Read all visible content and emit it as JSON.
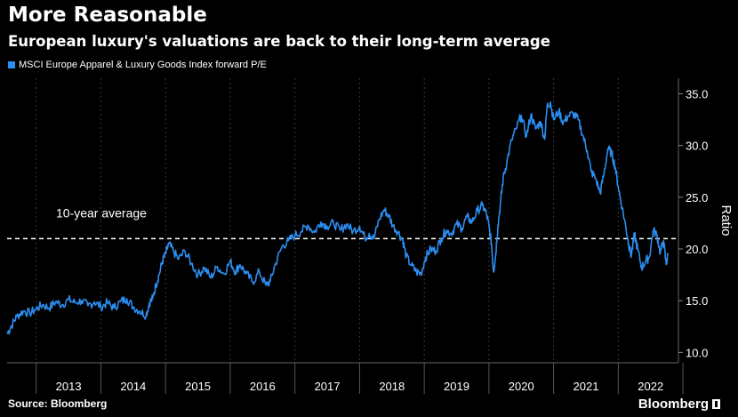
{
  "title": "More Reasonable",
  "subtitle": "European luxury's valuations are back to their long-term average",
  "source": "Source: Bloomberg",
  "brand": "Bloomberg",
  "colors": {
    "series": "#2b8ef0",
    "average": "#ffffff",
    "background": "#000000"
  },
  "chart_data": {
    "type": "line",
    "series": [
      {
        "name": "MSCI Europe Apparel & Luxury Goods Index forward P/E",
        "points": [
          [
            2012.55,
            11.8
          ],
          [
            2012.62,
            12.6
          ],
          [
            2012.7,
            13.5
          ],
          [
            2012.8,
            14.0
          ],
          [
            2012.9,
            13.8
          ],
          [
            2013.0,
            14.2
          ],
          [
            2013.1,
            14.6
          ],
          [
            2013.2,
            14.3
          ],
          [
            2013.3,
            14.9
          ],
          [
            2013.4,
            14.6
          ],
          [
            2013.5,
            15.1
          ],
          [
            2013.6,
            14.8
          ],
          [
            2013.7,
            15.0
          ],
          [
            2013.8,
            14.5
          ],
          [
            2013.9,
            14.9
          ],
          [
            2014.0,
            14.4
          ],
          [
            2014.1,
            14.8
          ],
          [
            2014.2,
            14.3
          ],
          [
            2014.3,
            14.9
          ],
          [
            2014.4,
            15.2
          ],
          [
            2014.5,
            14.4
          ],
          [
            2014.6,
            14.0
          ],
          [
            2014.7,
            13.6
          ],
          [
            2014.75,
            14.8
          ],
          [
            2014.8,
            15.2
          ],
          [
            2014.85,
            16.5
          ],
          [
            2014.9,
            17.5
          ],
          [
            2014.95,
            18.8
          ],
          [
            2015.0,
            19.5
          ],
          [
            2015.05,
            20.5
          ],
          [
            2015.12,
            19.8
          ],
          [
            2015.2,
            19.0
          ],
          [
            2015.3,
            19.8
          ],
          [
            2015.4,
            18.6
          ],
          [
            2015.5,
            17.5
          ],
          [
            2015.6,
            18.2
          ],
          [
            2015.7,
            17.2
          ],
          [
            2015.8,
            18.3
          ],
          [
            2015.9,
            17.6
          ],
          [
            2016.0,
            18.8
          ],
          [
            2016.08,
            17.8
          ],
          [
            2016.15,
            18.5
          ],
          [
            2016.25,
            17.6
          ],
          [
            2016.35,
            16.8
          ],
          [
            2016.45,
            17.8
          ],
          [
            2016.55,
            16.5
          ],
          [
            2016.62,
            16.9
          ],
          [
            2016.7,
            18.6
          ],
          [
            2016.8,
            20.2
          ],
          [
            2016.9,
            20.8
          ],
          [
            2017.0,
            21.3
          ],
          [
            2017.1,
            21.7
          ],
          [
            2017.2,
            22.3
          ],
          [
            2017.3,
            21.6
          ],
          [
            2017.4,
            22.6
          ],
          [
            2017.5,
            22.2
          ],
          [
            2017.6,
            22.5
          ],
          [
            2017.7,
            21.8
          ],
          [
            2017.8,
            22.4
          ],
          [
            2017.9,
            21.7
          ],
          [
            2018.0,
            22.2
          ],
          [
            2018.08,
            21.1
          ],
          [
            2018.15,
            21.5
          ],
          [
            2018.22,
            21.0
          ],
          [
            2018.3,
            22.8
          ],
          [
            2018.38,
            23.8
          ],
          [
            2018.45,
            23.2
          ],
          [
            2018.52,
            22.2
          ],
          [
            2018.6,
            21.6
          ],
          [
            2018.67,
            20.8
          ],
          [
            2018.72,
            19.3
          ],
          [
            2018.8,
            18.4
          ],
          [
            2018.88,
            17.8
          ],
          [
            2018.95,
            17.6
          ],
          [
            2019.02,
            19.2
          ],
          [
            2019.1,
            20.0
          ],
          [
            2019.18,
            19.8
          ],
          [
            2019.26,
            21.0
          ],
          [
            2019.34,
            21.8
          ],
          [
            2019.42,
            21.5
          ],
          [
            2019.5,
            22.4
          ],
          [
            2019.58,
            22.0
          ],
          [
            2019.66,
            23.1
          ],
          [
            2019.74,
            22.6
          ],
          [
            2019.82,
            23.7
          ],
          [
            2019.9,
            24.2
          ],
          [
            2019.96,
            23.4
          ],
          [
            2020.0,
            22.2
          ],
          [
            2020.04,
            20.5
          ],
          [
            2020.07,
            17.8
          ],
          [
            2020.1,
            19.2
          ],
          [
            2020.14,
            22.3
          ],
          [
            2020.18,
            24.5
          ],
          [
            2020.22,
            26.8
          ],
          [
            2020.28,
            28.5
          ],
          [
            2020.35,
            30.5
          ],
          [
            2020.42,
            31.6
          ],
          [
            2020.5,
            32.9
          ],
          [
            2020.58,
            30.9
          ],
          [
            2020.65,
            33.0
          ],
          [
            2020.72,
            31.6
          ],
          [
            2020.8,
            32.3
          ],
          [
            2020.86,
            30.6
          ],
          [
            2020.9,
            33.8
          ],
          [
            2020.95,
            34.2
          ],
          [
            2021.0,
            32.5
          ],
          [
            2021.08,
            33.3
          ],
          [
            2021.15,
            32.2
          ],
          [
            2021.22,
            32.8
          ],
          [
            2021.3,
            33.1
          ],
          [
            2021.38,
            32.5
          ],
          [
            2021.45,
            31.0
          ],
          [
            2021.52,
            29.5
          ],
          [
            2021.58,
            27.5
          ],
          [
            2021.65,
            26.8
          ],
          [
            2021.72,
            25.4
          ],
          [
            2021.78,
            27.3
          ],
          [
            2021.84,
            29.7
          ],
          [
            2021.9,
            29.2
          ],
          [
            2021.95,
            28.0
          ],
          [
            2022.0,
            26.0
          ],
          [
            2022.06,
            24.0
          ],
          [
            2022.12,
            22.0
          ],
          [
            2022.16,
            20.5
          ],
          [
            2022.2,
            19.3
          ],
          [
            2022.25,
            21.4
          ],
          [
            2022.3,
            20.0
          ],
          [
            2022.36,
            18.2
          ],
          [
            2022.42,
            18.8
          ],
          [
            2022.48,
            19.2
          ],
          [
            2022.54,
            21.8
          ],
          [
            2022.6,
            21.3
          ],
          [
            2022.65,
            19.6
          ],
          [
            2022.7,
            20.8
          ],
          [
            2022.74,
            18.5
          ],
          [
            2022.77,
            19.5
          ]
        ]
      }
    ],
    "average": {
      "value": 21.0,
      "label": "10-year average"
    },
    "x_ticks": [
      "2013",
      "2014",
      "2015",
      "2016",
      "2017",
      "2018",
      "2019",
      "2020",
      "2021",
      "2022"
    ],
    "y_ticks": [
      "10.0",
      "15.0",
      "20.0",
      "25.0",
      "30.0",
      "35.0"
    ],
    "ylabel": "Ratio",
    "xlim": [
      2012.55,
      2022.93
    ],
    "ylim": [
      9.0,
      36.5
    ],
    "grid": {
      "vertical_dashed": true,
      "horizontal": false
    },
    "legend_position": "top-left"
  }
}
